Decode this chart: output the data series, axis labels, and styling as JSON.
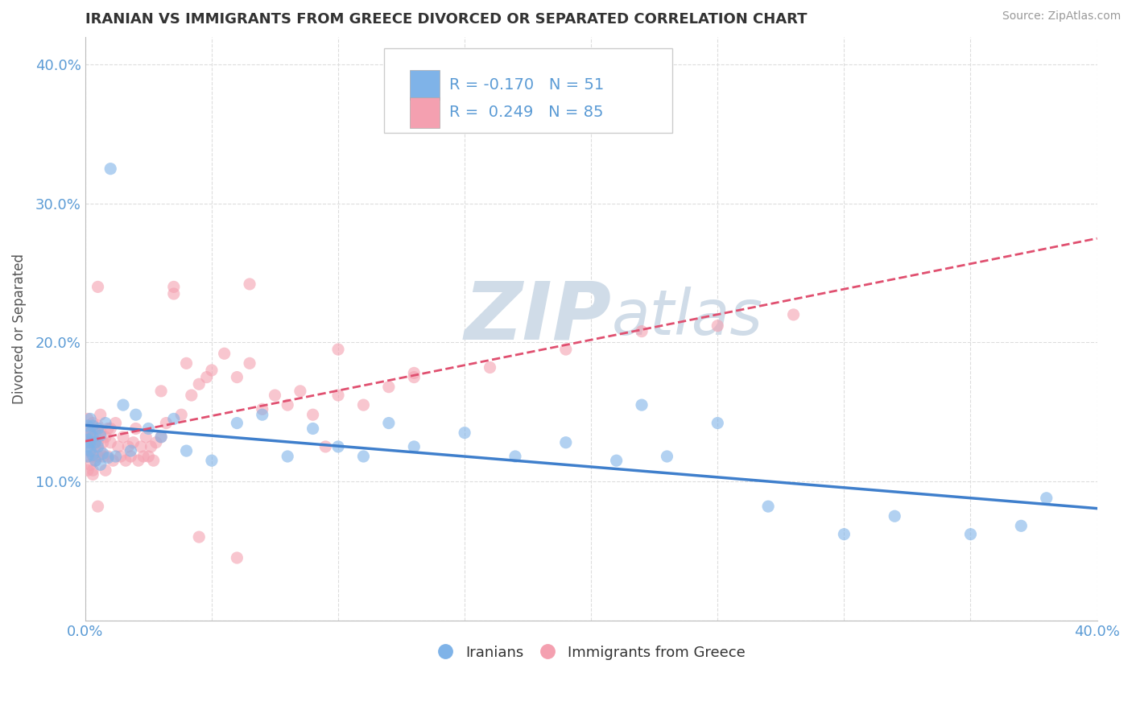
{
  "title": "IRANIAN VS IMMIGRANTS FROM GREECE DIVORCED OR SEPARATED CORRELATION CHART",
  "source": "Source: ZipAtlas.com",
  "ylabel": "Divorced or Separated",
  "watermark_zip": "ZIP",
  "watermark_atlas": "atlas",
  "legend_iranian": {
    "R": -0.17,
    "N": 51
  },
  "legend_greece": {
    "R": 0.249,
    "N": 85
  },
  "xlim": [
    0.0,
    0.4
  ],
  "ylim": [
    0.0,
    0.42
  ],
  "color_iranian": "#7FB3E8",
  "color_greece": "#F4A0B0",
  "color_trend_iranian": "#3F7FCC",
  "color_trend_greece": "#E05070",
  "tick_color": "#5B9BD5",
  "ylabel_color": "#555555",
  "title_color": "#333333",
  "source_color": "#999999",
  "grid_color": "#DDDDDD",
  "watermark_color": "#D0DCE8",
  "iranians_x": [
    0.001,
    0.001,
    0.001,
    0.001,
    0.002,
    0.002,
    0.002,
    0.002,
    0.003,
    0.003,
    0.003,
    0.004,
    0.004,
    0.005,
    0.005,
    0.006,
    0.006,
    0.007,
    0.008,
    0.009,
    0.01,
    0.012,
    0.015,
    0.018,
    0.02,
    0.025,
    0.03,
    0.035,
    0.04,
    0.05,
    0.06,
    0.07,
    0.08,
    0.09,
    0.1,
    0.11,
    0.12,
    0.13,
    0.15,
    0.17,
    0.19,
    0.21,
    0.23,
    0.25,
    0.27,
    0.3,
    0.32,
    0.35,
    0.37,
    0.22,
    0.38
  ],
  "iranians_y": [
    0.13,
    0.125,
    0.118,
    0.14,
    0.128,
    0.135,
    0.122,
    0.145,
    0.132,
    0.119,
    0.14,
    0.128,
    0.115,
    0.138,
    0.125,
    0.133,
    0.112,
    0.12,
    0.142,
    0.117,
    0.325,
    0.118,
    0.155,
    0.122,
    0.148,
    0.138,
    0.132,
    0.145,
    0.122,
    0.115,
    0.142,
    0.148,
    0.118,
    0.138,
    0.125,
    0.118,
    0.142,
    0.125,
    0.135,
    0.118,
    0.128,
    0.115,
    0.118,
    0.142,
    0.082,
    0.062,
    0.075,
    0.062,
    0.068,
    0.155,
    0.088
  ],
  "greece_x": [
    0.001,
    0.001,
    0.001,
    0.001,
    0.001,
    0.002,
    0.002,
    0.002,
    0.002,
    0.003,
    0.003,
    0.003,
    0.003,
    0.004,
    0.004,
    0.004,
    0.005,
    0.005,
    0.005,
    0.006,
    0.006,
    0.006,
    0.007,
    0.007,
    0.008,
    0.008,
    0.009,
    0.009,
    0.01,
    0.01,
    0.011,
    0.012,
    0.013,
    0.014,
    0.015,
    0.016,
    0.017,
    0.018,
    0.019,
    0.02,
    0.021,
    0.022,
    0.023,
    0.024,
    0.025,
    0.026,
    0.027,
    0.028,
    0.03,
    0.032,
    0.035,
    0.038,
    0.04,
    0.042,
    0.045,
    0.048,
    0.05,
    0.055,
    0.06,
    0.065,
    0.07,
    0.075,
    0.08,
    0.085,
    0.09,
    0.095,
    0.1,
    0.11,
    0.12,
    0.13,
    0.035,
    0.065,
    0.1,
    0.13,
    0.16,
    0.19,
    0.22,
    0.25,
    0.28,
    0.003,
    0.06,
    0.03,
    0.005,
    0.005,
    0.045
  ],
  "greece_y": [
    0.128,
    0.135,
    0.118,
    0.145,
    0.108,
    0.132,
    0.122,
    0.138,
    0.112,
    0.128,
    0.118,
    0.142,
    0.105,
    0.135,
    0.125,
    0.115,
    0.14,
    0.128,
    0.118,
    0.135,
    0.122,
    0.148,
    0.128,
    0.118,
    0.132,
    0.108,
    0.138,
    0.118,
    0.128,
    0.138,
    0.115,
    0.142,
    0.125,
    0.118,
    0.132,
    0.115,
    0.125,
    0.118,
    0.128,
    0.138,
    0.115,
    0.125,
    0.118,
    0.132,
    0.118,
    0.125,
    0.115,
    0.128,
    0.132,
    0.142,
    0.24,
    0.148,
    0.185,
    0.162,
    0.17,
    0.175,
    0.18,
    0.192,
    0.175,
    0.185,
    0.152,
    0.162,
    0.155,
    0.165,
    0.148,
    0.125,
    0.162,
    0.155,
    0.168,
    0.178,
    0.235,
    0.242,
    0.195,
    0.175,
    0.182,
    0.195,
    0.208,
    0.212,
    0.22,
    0.108,
    0.045,
    0.165,
    0.24,
    0.082,
    0.06
  ]
}
